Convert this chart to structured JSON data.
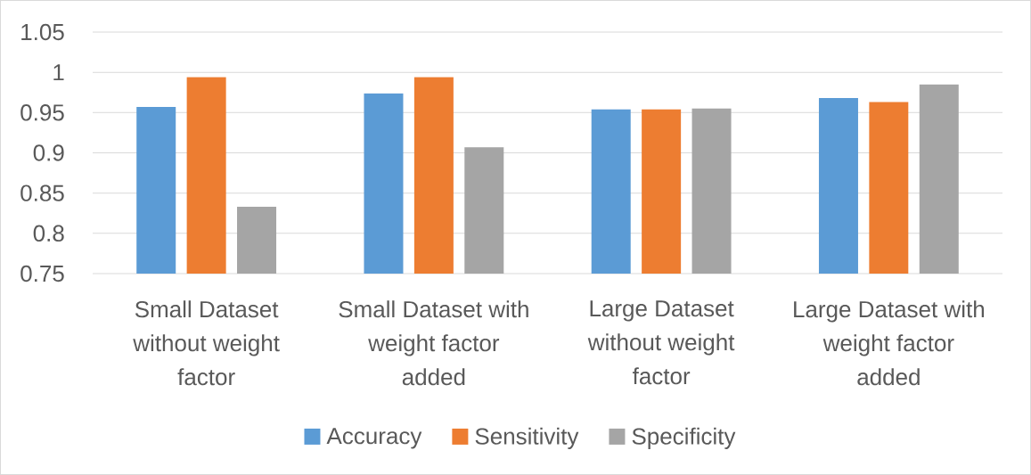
{
  "chart_data": {
    "type": "bar",
    "categories": [
      "Small Dataset without weight factor",
      "Small Dataset with weight factor added",
      "Large Dataset without weight factor",
      "Large Dataset with weight factor added"
    ],
    "series": [
      {
        "name": "Accuracy",
        "color": "#5b9bd5",
        "values": [
          0.957,
          0.974,
          0.954,
          0.968
        ]
      },
      {
        "name": "Sensitivity",
        "color": "#ed7d31",
        "values": [
          0.994,
          0.994,
          0.954,
          0.963
        ]
      },
      {
        "name": "Specificity",
        "color": "#a5a5a5",
        "values": [
          0.833,
          0.907,
          0.955,
          0.985
        ]
      }
    ],
    "ylim": [
      0.75,
      1.05
    ],
    "yticks": [
      0.75,
      0.8,
      0.85,
      0.9,
      0.95,
      1,
      1.05
    ],
    "grid": "y",
    "legend": "bottom"
  }
}
